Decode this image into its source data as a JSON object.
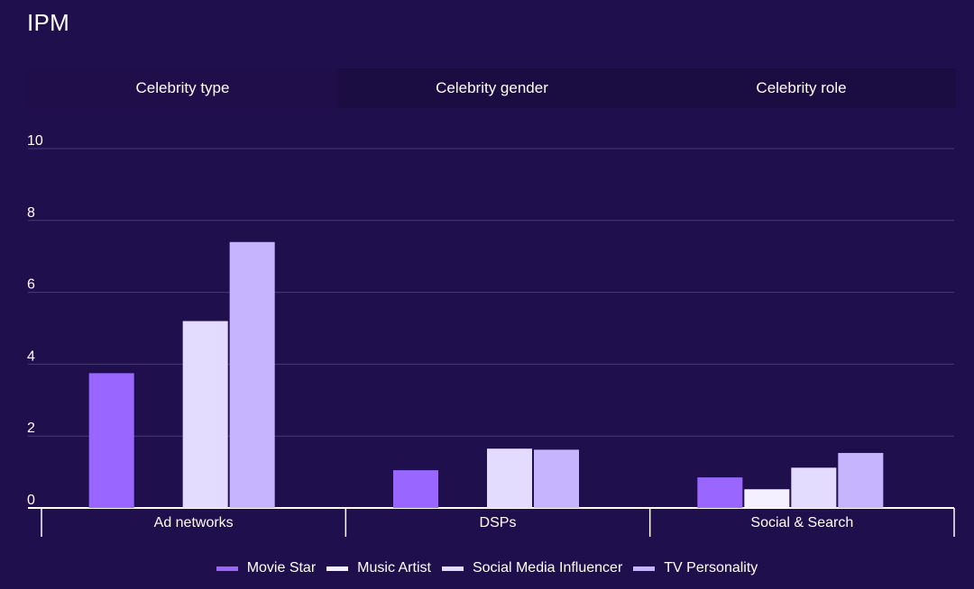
{
  "title": "IPM",
  "tabs": [
    {
      "label": "Celebrity type",
      "active": true
    },
    {
      "label": "Celebrity gender",
      "active": false
    },
    {
      "label": "Celebrity role",
      "active": false
    }
  ],
  "chart_data": {
    "type": "bar",
    "title": "IPM",
    "categories": [
      "Ad networks",
      "DSPs",
      "Social & Search"
    ],
    "series": [
      {
        "name": "Movie Star",
        "color": "#9966ff",
        "values": [
          3.75,
          1.05,
          0.85
        ]
      },
      {
        "name": "Music Artist",
        "color": "#f5f0ff",
        "values": [
          0,
          0,
          0.52
        ]
      },
      {
        "name": "Social Media Influencer",
        "color": "#e4dcfe",
        "values": [
          5.2,
          1.65,
          1.12
        ]
      },
      {
        "name": "TV Personality",
        "color": "#c7b4ff",
        "values": [
          7.4,
          1.62,
          1.53
        ]
      }
    ],
    "y_ticks": [
      0,
      2,
      4,
      6,
      8,
      10
    ],
    "ylim": [
      0,
      10
    ],
    "xlabel": "",
    "ylabel": "",
    "grid": true,
    "legend_position": "bottom-center"
  }
}
